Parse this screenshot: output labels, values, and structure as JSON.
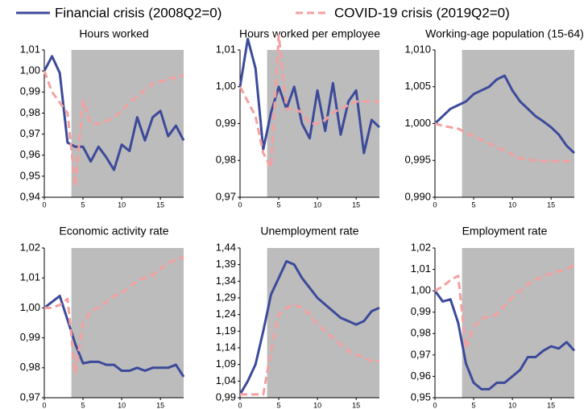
{
  "legend": [
    {
      "name": "Financial crisis (2008Q2=0)",
      "color": "#3c4a9a",
      "dashed": false
    },
    {
      "name": "COVID-19 crisis (2019Q2=0)",
      "color": "#f4a0a0",
      "dashed": true
    }
  ],
  "chart_data": [
    {
      "type": "line",
      "title": "Hours worked",
      "x": [
        0,
        1,
        2,
        3,
        4,
        5,
        6,
        7,
        8,
        9,
        10,
        11,
        12,
        13,
        14,
        15,
        16,
        17,
        18
      ],
      "series": [
        {
          "values": [
            1.0,
            1.007,
            0.999,
            0.966,
            0.964,
            0.964,
            0.957,
            0.964,
            0.959,
            0.953,
            0.965,
            0.962,
            0.978,
            0.967,
            0.978,
            0.981,
            0.969,
            0.974,
            0.967
          ]
        },
        {
          "values": [
            1.0,
            0.99,
            0.985,
            0.98,
            0.945,
            0.986,
            0.975,
            0.975,
            0.976,
            0.978,
            0.981,
            0.985,
            0.988,
            0.991,
            0.994,
            0.995,
            0.996,
            0.997,
            0.998
          ]
        }
      ],
      "xlim": [
        0,
        18
      ],
      "xticks": [
        0,
        5,
        10,
        15
      ],
      "shaded_xlim": [
        3.5,
        18
      ],
      "ylim": [
        0.94,
        1.01
      ],
      "yticks": [
        {
          "value": 0.94,
          "label": "0,94"
        },
        {
          "value": 0.95,
          "label": "0,95"
        },
        {
          "value": 0.96,
          "label": "0,96"
        },
        {
          "value": 0.97,
          "label": "0,97"
        },
        {
          "value": 0.98,
          "label": "0,98"
        },
        {
          "value": 0.99,
          "label": "0,99"
        },
        {
          "value": 1.0,
          "label": "1,00"
        },
        {
          "value": 1.01,
          "label": "1,01"
        }
      ]
    },
    {
      "type": "line",
      "title": "Hours worked per employee",
      "x": [
        0,
        1,
        2,
        3,
        4,
        5,
        6,
        7,
        8,
        9,
        10,
        11,
        12,
        13,
        14,
        15,
        16,
        17,
        18
      ],
      "series": [
        {
          "values": [
            1.0,
            1.013,
            1.005,
            0.983,
            0.993,
            1.0,
            0.994,
            1.0,
            0.99,
            0.986,
            0.999,
            0.988,
            1.001,
            0.987,
            0.996,
            0.999,
            0.982,
            0.991,
            0.989
          ]
        },
        {
          "values": [
            1.0,
            0.996,
            0.992,
            0.982,
            0.978,
            1.014,
            0.994,
            0.994,
            0.993,
            0.99,
            0.99,
            0.991,
            0.993,
            0.994,
            0.995,
            0.996,
            0.996,
            0.996,
            0.996
          ]
        }
      ],
      "xlim": [
        0,
        18
      ],
      "xticks": [
        0,
        5,
        10,
        15
      ],
      "shaded_xlim": [
        3.5,
        18
      ],
      "ylim": [
        0.97,
        1.01
      ],
      "yticks": [
        {
          "value": 0.97,
          "label": "0,97"
        },
        {
          "value": 0.98,
          "label": "0,98"
        },
        {
          "value": 0.99,
          "label": "0,99"
        },
        {
          "value": 1.0,
          "label": "1,00"
        },
        {
          "value": 1.01,
          "label": "1,01"
        }
      ]
    },
    {
      "type": "line",
      "title": "Working-age population (15-64)",
      "x": [
        0,
        1,
        2,
        3,
        4,
        5,
        6,
        7,
        8,
        9,
        10,
        11,
        12,
        13,
        14,
        15,
        16,
        17,
        18
      ],
      "series": [
        {
          "values": [
            1.0,
            1.001,
            1.002,
            1.0025,
            1.003,
            1.004,
            1.0045,
            1.005,
            1.006,
            1.0065,
            1.0045,
            1.003,
            1.002,
            1.001,
            1.0003,
            0.9995,
            0.9985,
            0.997,
            0.996
          ]
        },
        {
          "values": [
            1.0,
            0.9997,
            0.9995,
            0.9993,
            0.9988,
            0.9983,
            0.9978,
            0.9973,
            0.9968,
            0.9963,
            0.9958,
            0.9953,
            0.9951,
            0.995,
            0.9949,
            0.9949,
            0.9949,
            0.9949,
            0.995
          ]
        }
      ],
      "xlim": [
        0,
        18
      ],
      "xticks": [
        0,
        5,
        10,
        15
      ],
      "shaded_xlim": [
        3.5,
        18
      ],
      "ylim": [
        0.99,
        1.01
      ],
      "yticks": [
        {
          "value": 0.99,
          "label": "0,990"
        },
        {
          "value": 0.995,
          "label": "0,995"
        },
        {
          "value": 1.0,
          "label": "1,000"
        },
        {
          "value": 1.005,
          "label": "1,005"
        },
        {
          "value": 1.01,
          "label": "1,010"
        }
      ]
    },
    {
      "type": "line",
      "title": "Economic activity rate",
      "x": [
        0,
        1,
        2,
        3,
        4,
        5,
        6,
        7,
        8,
        9,
        10,
        11,
        12,
        13,
        14,
        15,
        16,
        17,
        18
      ],
      "series": [
        {
          "values": [
            1.0,
            1.002,
            1.004,
            0.996,
            0.988,
            0.9815,
            0.982,
            0.982,
            0.981,
            0.981,
            0.979,
            0.979,
            0.98,
            0.979,
            0.98,
            0.98,
            0.98,
            0.981,
            0.977
          ]
        },
        {
          "values": [
            1.0,
            1.0,
            1.001,
            1.003,
            0.978,
            0.995,
            0.999,
            1.0,
            1.002,
            1.004,
            1.005,
            1.007,
            1.009,
            1.01,
            1.011,
            1.013,
            1.015,
            1.016,
            1.017
          ]
        }
      ],
      "xlim": [
        0,
        18
      ],
      "xticks": [
        0,
        5,
        10,
        15
      ],
      "shaded_xlim": [
        3.5,
        18
      ],
      "ylim": [
        0.97,
        1.02
      ],
      "yticks": [
        {
          "value": 0.97,
          "label": "0,97"
        },
        {
          "value": 0.98,
          "label": "0,98"
        },
        {
          "value": 0.99,
          "label": "0,99"
        },
        {
          "value": 1.0,
          "label": "1,00"
        },
        {
          "value": 1.01,
          "label": "1,01"
        },
        {
          "value": 1.02,
          "label": "1,02"
        }
      ]
    },
    {
      "type": "line",
      "title": "Unemployment rate",
      "x": [
        0,
        1,
        2,
        3,
        4,
        5,
        6,
        7,
        8,
        9,
        10,
        11,
        12,
        13,
        14,
        15,
        16,
        17,
        18
      ],
      "series": [
        {
          "values": [
            1.0,
            1.04,
            1.09,
            1.19,
            1.3,
            1.35,
            1.4,
            1.39,
            1.35,
            1.32,
            1.29,
            1.27,
            1.25,
            1.23,
            1.22,
            1.21,
            1.22,
            1.25,
            1.26
          ]
        },
        {
          "values": [
            1.0,
            1.0,
            1.0,
            1.0,
            1.13,
            1.24,
            1.26,
            1.27,
            1.26,
            1.24,
            1.21,
            1.19,
            1.17,
            1.15,
            1.13,
            1.12,
            1.11,
            1.1,
            1.1
          ]
        }
      ],
      "xlim": [
        0,
        18
      ],
      "xticks": [
        0,
        5,
        10,
        15
      ],
      "shaded_xlim": [
        3.5,
        18
      ],
      "ylim": [
        0.99,
        1.44
      ],
      "yticks": [
        {
          "value": 0.99,
          "label": "0,99"
        },
        {
          "value": 1.04,
          "label": "1,04"
        },
        {
          "value": 1.09,
          "label": "1,09"
        },
        {
          "value": 1.14,
          "label": "1,14"
        },
        {
          "value": 1.19,
          "label": "1,19"
        },
        {
          "value": 1.24,
          "label": "1,24"
        },
        {
          "value": 1.29,
          "label": "1,29"
        },
        {
          "value": 1.34,
          "label": "1,34"
        },
        {
          "value": 1.39,
          "label": "1,39"
        },
        {
          "value": 1.44,
          "label": "1,44"
        }
      ]
    },
    {
      "type": "line",
      "title": "Employment rate",
      "x": [
        0,
        1,
        2,
        3,
        4,
        5,
        6,
        7,
        8,
        9,
        10,
        11,
        12,
        13,
        14,
        15,
        16,
        17,
        18
      ],
      "series": [
        {
          "values": [
            1.0,
            0.995,
            0.996,
            0.985,
            0.966,
            0.957,
            0.954,
            0.954,
            0.957,
            0.957,
            0.96,
            0.963,
            0.969,
            0.969,
            0.972,
            0.974,
            0.973,
            0.976,
            0.972
          ]
        },
        {
          "values": [
            1.0,
            1.002,
            1.005,
            1.007,
            0.973,
            0.983,
            0.987,
            0.988,
            0.989,
            0.993,
            0.997,
            1.0,
            1.003,
            1.005,
            1.007,
            1.008,
            1.009,
            1.01,
            1.012
          ]
        }
      ],
      "xlim": [
        0,
        18
      ],
      "xticks": [
        0,
        5,
        10,
        15
      ],
      "shaded_xlim": [
        3.5,
        18
      ],
      "ylim": [
        0.95,
        1.02
      ],
      "yticks": [
        {
          "value": 0.95,
          "label": "0,95"
        },
        {
          "value": 0.96,
          "label": "0,96"
        },
        {
          "value": 0.97,
          "label": "0,97"
        },
        {
          "value": 0.98,
          "label": "0,98"
        },
        {
          "value": 0.99,
          "label": "0,99"
        },
        {
          "value": 1.0,
          "label": "1,00"
        },
        {
          "value": 1.01,
          "label": "1,01"
        },
        {
          "value": 1.02,
          "label": "1,02"
        }
      ]
    }
  ]
}
